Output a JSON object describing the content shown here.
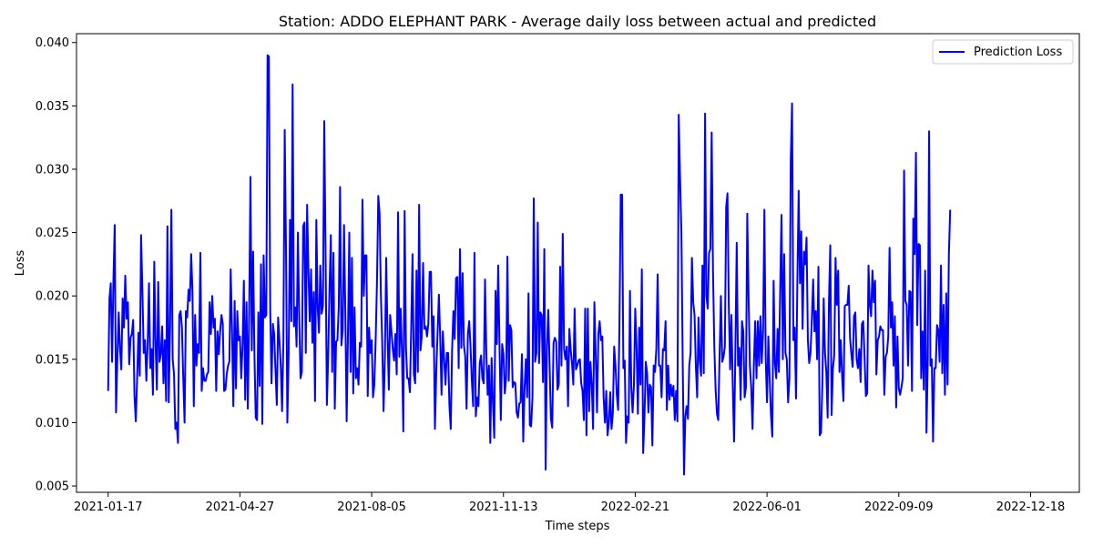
{
  "chart_data": {
    "type": "line",
    "title": "Station: ADDO ELEPHANT PARK - Average daily loss between actual and predicted",
    "xlabel": "Time steps",
    "ylabel": "Loss",
    "xlim": [
      "2020-12-24",
      "2023-01-24"
    ],
    "ylim": [
      0.0045,
      0.0407
    ],
    "x_ticks": [
      "2021-01-17",
      "2021-04-27",
      "2021-08-05",
      "2021-11-13",
      "2022-02-21",
      "2022-06-01",
      "2022-09-09",
      "2022-12-18"
    ],
    "y_ticks": [
      "0.005",
      "0.010",
      "0.015",
      "0.020",
      "0.025",
      "0.030",
      "0.035",
      "0.040"
    ],
    "grid": false,
    "legend": {
      "position": "top-right",
      "entries": [
        "Prediction Loss"
      ]
    },
    "series": [
      {
        "name": "Prediction Loss",
        "color": "#0000ff",
        "x_start": "2021-01-17",
        "x_step": "1 day",
        "values": [
          0.0125,
          0.0198,
          0.021,
          0.0148,
          0.0212,
          0.0256,
          0.0108,
          0.015,
          0.0187,
          0.0158,
          0.0142,
          0.0198,
          0.0175,
          0.0216,
          0.0182,
          0.0195,
          0.0146,
          0.0167,
          0.017,
          0.0181,
          0.0121,
          0.0101,
          0.0135,
          0.0171,
          0.0137,
          0.0248,
          0.0204,
          0.0155,
          0.0165,
          0.0133,
          0.0162,
          0.021,
          0.0143,
          0.0158,
          0.0122,
          0.0227,
          0.0163,
          0.0126,
          0.0211,
          0.0148,
          0.0154,
          0.0176,
          0.0131,
          0.0165,
          0.0117,
          0.0255,
          0.0116,
          0.0175,
          0.0268,
          0.015,
          0.0138,
          0.0095,
          0.01,
          0.0084,
          0.0185,
          0.0188,
          0.0175,
          0.0135,
          0.01,
          0.0188,
          0.0183,
          0.0205,
          0.0196,
          0.0233,
          0.0204,
          0.0113,
          0.0185,
          0.0145,
          0.0162,
          0.0155,
          0.0234,
          0.0125,
          0.0143,
          0.0133,
          0.0133,
          0.0138,
          0.014,
          0.0195,
          0.017,
          0.02,
          0.0175,
          0.0182,
          0.0125,
          0.0172,
          0.0154,
          0.0172,
          0.0185,
          0.0178,
          0.0125,
          0.0126,
          0.0138,
          0.0145,
          0.0148,
          0.0221,
          0.0174,
          0.0113,
          0.0196,
          0.0127,
          0.0188,
          0.0165,
          0.0168,
          0.0135,
          0.016,
          0.0212,
          0.0118,
          0.0195,
          0.0111,
          0.0184,
          0.0294,
          0.0157,
          0.0235,
          0.0155,
          0.0104,
          0.0102,
          0.0187,
          0.0129,
          0.0225,
          0.0099,
          0.0232,
          0.0183,
          0.0185,
          0.039,
          0.0389,
          0.0188,
          0.0131,
          0.0178,
          0.017,
          0.0141,
          0.0114,
          0.0183,
          0.0165,
          0.0145,
          0.0109,
          0.0165,
          0.0331,
          0.0235,
          0.01,
          0.0155,
          0.026,
          0.018,
          0.0367,
          0.0176,
          0.0191,
          0.016,
          0.025,
          0.0183,
          0.0135,
          0.014,
          0.0255,
          0.0258,
          0.0155,
          0.0272,
          0.022,
          0.018,
          0.0221,
          0.0163,
          0.0203,
          0.0117,
          0.026,
          0.0191,
          0.0171,
          0.0224,
          0.0186,
          0.0192,
          0.0338,
          0.0236,
          0.0114,
          0.0153,
          0.0206,
          0.0248,
          0.014,
          0.0234,
          0.0111,
          0.0164,
          0.0165,
          0.0191,
          0.0286,
          0.0161,
          0.0173,
          0.0256,
          0.0187,
          0.0101,
          0.017,
          0.025,
          0.014,
          0.023,
          0.0123,
          0.0191,
          0.0135,
          0.0143,
          0.013,
          0.0163,
          0.016,
          0.0276,
          0.02,
          0.0232,
          0.0232,
          0.0121,
          0.0175,
          0.0155,
          0.0165,
          0.012,
          0.013,
          0.0165,
          0.021,
          0.0279,
          0.0265,
          0.02,
          0.0163,
          0.0109,
          0.015,
          0.023,
          0.0171,
          0.0126,
          0.0185,
          0.0172,
          0.0158,
          0.0149,
          0.017,
          0.0138,
          0.0266,
          0.0152,
          0.019,
          0.0155,
          0.0093,
          0.0267,
          0.016,
          0.0135,
          0.0135,
          0.0124,
          0.0175,
          0.0233,
          0.0138,
          0.0131,
          0.022,
          0.014,
          0.0272,
          0.0157,
          0.0168,
          0.0226,
          0.0174,
          0.0176,
          0.0168,
          0.0178,
          0.0219,
          0.0219,
          0.016,
          0.0184,
          0.0095,
          0.014,
          0.0171,
          0.0201,
          0.0167,
          0.0122,
          0.0172,
          0.015,
          0.013,
          0.0155,
          0.0155,
          0.0113,
          0.0095,
          0.0157,
          0.0188,
          0.0166,
          0.0214,
          0.0215,
          0.0143,
          0.0237,
          0.0159,
          0.0218,
          0.0161,
          0.0152,
          0.0111,
          0.017,
          0.018,
          0.016,
          0.0133,
          0.0113,
          0.0234,
          0.0105,
          0.012,
          0.0113,
          0.0147,
          0.0153,
          0.0135,
          0.0131,
          0.0213,
          0.0155,
          0.0122,
          0.0145,
          0.0084,
          0.0151,
          0.0116,
          0.0088,
          0.0204,
          0.0162,
          0.0224,
          0.016,
          0.0102,
          0.0162,
          0.0154,
          0.0123,
          0.0135,
          0.0231,
          0.0133,
          0.0177,
          0.0173,
          0.0128,
          0.0132,
          0.0131,
          0.0108,
          0.0104,
          0.0115,
          0.0116,
          0.0154,
          0.0085,
          0.0127,
          0.015,
          0.012,
          0.0202,
          0.0098,
          0.0097,
          0.012,
          0.0277,
          0.0148,
          0.0155,
          0.0258,
          0.0147,
          0.0187,
          0.0185,
          0.0132,
          0.0237,
          0.0063,
          0.016,
          0.0189,
          0.0146,
          0.0103,
          0.0096,
          0.0163,
          0.0167,
          0.0164,
          0.0126,
          0.013,
          0.0223,
          0.0145,
          0.0249,
          0.0158,
          0.015,
          0.016,
          0.0113,
          0.0174,
          0.0158,
          0.0147,
          0.013,
          0.019,
          0.0142,
          0.0145,
          0.0149,
          0.015,
          0.0131,
          0.0125,
          0.0102,
          0.019,
          0.009,
          0.019,
          0.0109,
          0.0148,
          0.013,
          0.0095,
          0.0195,
          0.0153,
          0.0108,
          0.017,
          0.018,
          0.0165,
          0.0168,
          0.012,
          0.01,
          0.0125,
          0.009,
          0.01,
          0.0124,
          0.0095,
          0.0107,
          0.016,
          0.0145,
          0.0122,
          0.011,
          0.0175,
          0.028,
          0.028,
          0.0143,
          0.0149,
          0.0084,
          0.0105,
          0.01,
          0.0204,
          0.0128,
          0.0108,
          0.013,
          0.019,
          0.016,
          0.0107,
          0.0175,
          0.013,
          0.0221,
          0.0076,
          0.0104,
          0.0148,
          0.0139,
          0.0108,
          0.013,
          0.0128,
          0.0082,
          0.0145,
          0.014,
          0.0158,
          0.0217,
          0.0145,
          0.0145,
          0.012,
          0.0158,
          0.0157,
          0.018,
          0.011,
          0.0145,
          0.0118,
          0.013,
          0.0121,
          0.0129,
          0.0102,
          0.0125,
          0.0101,
          0.0343,
          0.0293,
          0.0252,
          0.015,
          0.0059,
          0.0105,
          0.0113,
          0.0103,
          0.0145,
          0.0155,
          0.023,
          0.0195,
          0.0185,
          0.0144,
          0.012,
          0.0183,
          0.0148,
          0.0137,
          0.0224,
          0.0139,
          0.0344,
          0.02,
          0.019,
          0.0234,
          0.0237,
          0.0329,
          0.022,
          0.016,
          0.0126,
          0.0107,
          0.0102,
          0.0153,
          0.02,
          0.0148,
          0.0152,
          0.016,
          0.027,
          0.0281,
          0.0192,
          0.0142,
          0.0185,
          0.0128,
          0.0085,
          0.0158,
          0.0242,
          0.0145,
          0.0159,
          0.0118,
          0.018,
          0.0172,
          0.012,
          0.0128,
          0.0265,
          0.02,
          0.0145,
          0.0128,
          0.0095,
          0.0145,
          0.018,
          0.0135,
          0.018,
          0.0145,
          0.0184,
          0.0147,
          0.0172,
          0.0268,
          0.015,
          0.0116,
          0.0168,
          0.0135,
          0.0106,
          0.0089,
          0.0212,
          0.0147,
          0.0135,
          0.0174,
          0.014,
          0.0206,
          0.0264,
          0.015,
          0.0233,
          0.0155,
          0.015,
          0.0116,
          0.0135,
          0.0307,
          0.0352,
          0.0165,
          0.0175,
          0.0119,
          0.021,
          0.0283,
          0.021,
          0.0251,
          0.0174,
          0.0235,
          0.0225,
          0.0246,
          0.0165,
          0.0147,
          0.0155,
          0.0181,
          0.0213,
          0.0172,
          0.0188,
          0.015,
          0.0223,
          0.009,
          0.0092,
          0.0131,
          0.0198,
          0.0155,
          0.014,
          0.0104,
          0.0196,
          0.024,
          0.0106,
          0.0143,
          0.0153,
          0.023,
          0.0193,
          0.022,
          0.014,
          0.0165,
          0.0136,
          0.0117,
          0.0192,
          0.0193,
          0.0193,
          0.0208,
          0.0167,
          0.0154,
          0.0144,
          0.0184,
          0.0187,
          0.015,
          0.0143,
          0.0158,
          0.0132,
          0.0178,
          0.018,
          0.0152,
          0.0121,
          0.0123,
          0.0224,
          0.0193,
          0.0184,
          0.022,
          0.0195,
          0.0212,
          0.0138,
          0.0165,
          0.0168,
          0.0176,
          0.0173,
          0.0173,
          0.0122,
          0.0152,
          0.0155,
          0.0168,
          0.0238,
          0.0175,
          0.0195,
          0.0145,
          0.0184,
          0.0112,
          0.0168,
          0.0127,
          0.0122,
          0.0128,
          0.0135,
          0.0299,
          0.0196,
          0.0193,
          0.0145,
          0.0204,
          0.0203,
          0.0125,
          0.0261,
          0.0233,
          0.0313,
          0.0177,
          0.0241,
          0.024,
          0.0135,
          0.0172,
          0.0126,
          0.022,
          0.0092,
          0.015,
          0.033,
          0.0145,
          0.015,
          0.0085,
          0.0143,
          0.0143,
          0.0177,
          0.0173,
          0.0148,
          0.0224,
          0.0139,
          0.0193,
          0.0122,
          0.0202,
          0.013,
          0.0233,
          0.0268
        ]
      }
    ]
  }
}
